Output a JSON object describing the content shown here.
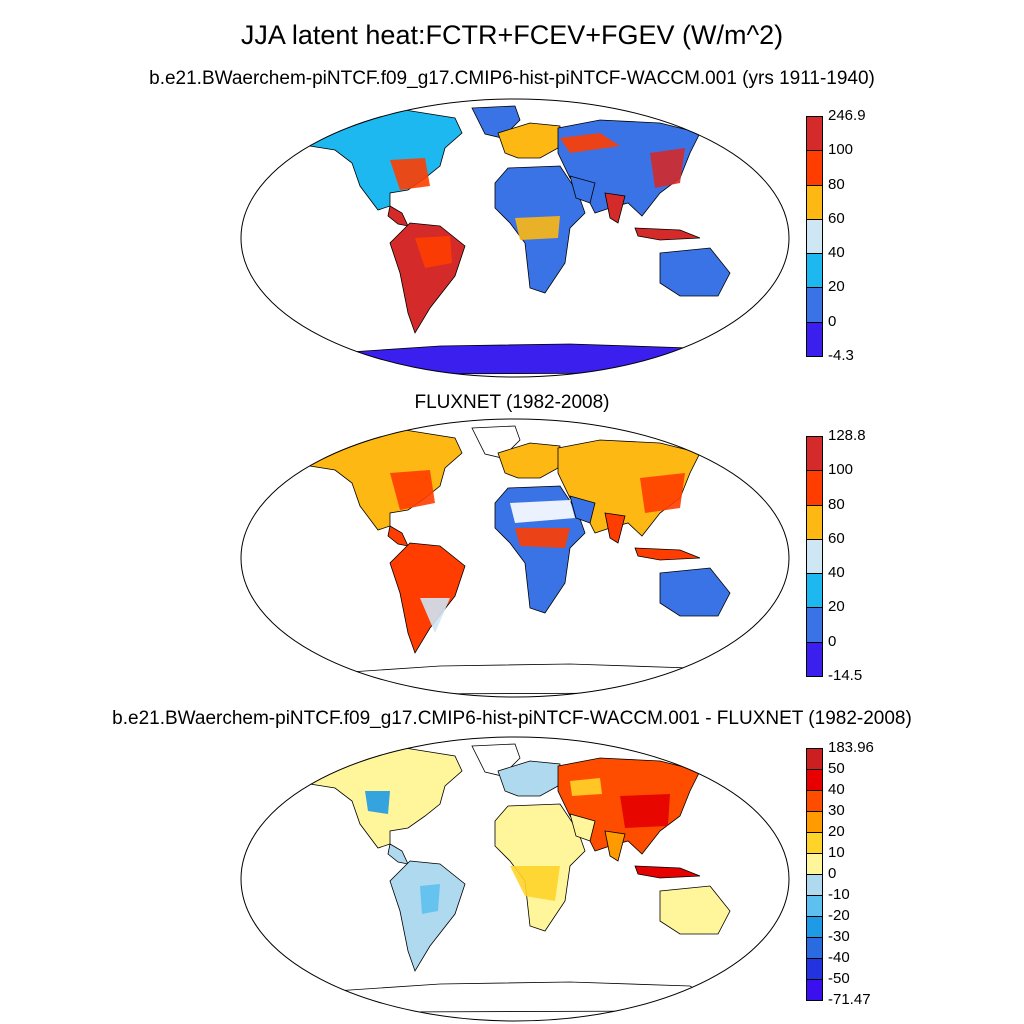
{
  "title": "JJA latent heat:FCTR+FCEV+FGEV (W/m^2)",
  "panels": [
    {
      "title": "b.e21.BWaerchem-piNTCF.f09_g17.CMIP6-hist-piNTCF-WACCM.001 (yrs 1911-1940)",
      "colorbar": {
        "labels": [
          "246.9",
          "100",
          "80",
          "60",
          "40",
          "20",
          "0",
          "-4.3"
        ],
        "colors": [
          "#d42a2a",
          "#ff3d00",
          "#fdb813",
          "#cfe6f4",
          "#1cb8ef",
          "#3a73e6",
          "#3a1fef"
        ]
      }
    },
    {
      "title": "FLUXNET (1982-2008)",
      "colorbar": {
        "labels": [
          "128.8",
          "100",
          "80",
          "60",
          "40",
          "20",
          "0",
          "-14.5"
        ],
        "colors": [
          "#d42a2a",
          "#ff3d00",
          "#fdb813",
          "#cfe6f4",
          "#1cb8ef",
          "#3a73e6",
          "#3a1fef"
        ]
      }
    },
    {
      "title": "b.e21.BWaerchem-piNTCF.f09_g17.CMIP6-hist-piNTCF-WACCM.001 - FLUXNET (1982-2008)",
      "colorbar": {
        "labels": [
          "183.96",
          "50",
          "40",
          "30",
          "20",
          "10",
          "0",
          "-10",
          "-20",
          "-30",
          "-40",
          "-50",
          "-71.47"
        ],
        "colors": [
          "#cc1f1f",
          "#e60000",
          "#ff4d00",
          "#ff9a00",
          "#ffd42a",
          "#fff59a",
          "#aed9ee",
          "#5ec0ee",
          "#1e9ae6",
          "#2a6be0",
          "#2433e0",
          "#3a10ef"
        ]
      }
    }
  ]
}
